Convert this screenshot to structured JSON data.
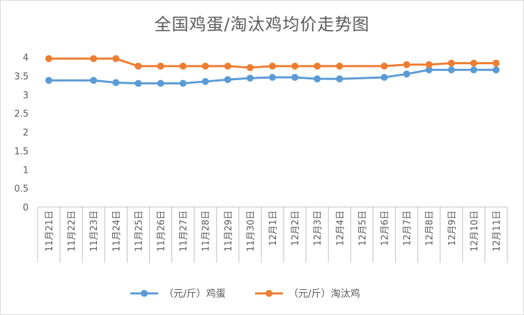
{
  "chart_data": {
    "type": "line",
    "title": "全国鸡蛋/淘汰鸡均价走势图",
    "categories": [
      "11月21日",
      "11月22日",
      "11月23日",
      "11月24日",
      "11月25日",
      "11月26日",
      "11月27日",
      "11月28日",
      "11月29日",
      "11月30日",
      "12月1日",
      "12月2日",
      "12月3日",
      "12月4日",
      "12月5日",
      "12月6日",
      "12月7日",
      "12月8日",
      "12月9日",
      "12月10日",
      "12月11日"
    ],
    "y_ticks": [
      "0",
      "0.5",
      "1",
      "1.5",
      "2",
      "2.5",
      "3",
      "3.5",
      "4"
    ],
    "ylim": [
      0,
      4
    ],
    "grid": false,
    "legend_position": "bottom",
    "series": [
      {
        "name": "（元/斤）鸡蛋",
        "color": "#5b9bd5",
        "values": [
          3.38,
          null,
          3.38,
          3.32,
          3.3,
          3.3,
          3.3,
          3.35,
          3.4,
          3.44,
          3.46,
          3.46,
          3.42,
          3.42,
          null,
          3.46,
          3.55,
          3.66,
          3.66,
          3.66,
          3.66
        ]
      },
      {
        "name": "（元/斤）淘汰鸡",
        "color": "#ed7d31",
        "values": [
          3.96,
          null,
          3.96,
          3.96,
          3.76,
          3.76,
          3.76,
          3.76,
          3.76,
          3.72,
          3.76,
          3.76,
          3.76,
          3.76,
          null,
          3.76,
          3.8,
          3.8,
          3.84,
          3.84,
          3.84
        ]
      }
    ]
  }
}
